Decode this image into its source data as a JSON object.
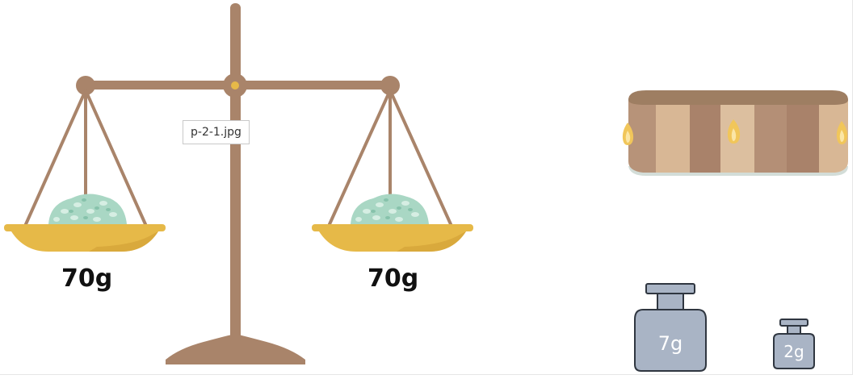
{
  "scale": {
    "left_pan_label": "70g",
    "right_pan_label": "70g"
  },
  "tooltip": {
    "text": "p-2-1.jpg"
  },
  "weights": {
    "large_label": "7g",
    "small_label": "2g"
  },
  "colors": {
    "wood": "#a9846a",
    "pan": "#e6b948",
    "salt": "#a9d7c4",
    "weight_body": "#a9b4c5",
    "drum_top": "#9e7e62"
  }
}
